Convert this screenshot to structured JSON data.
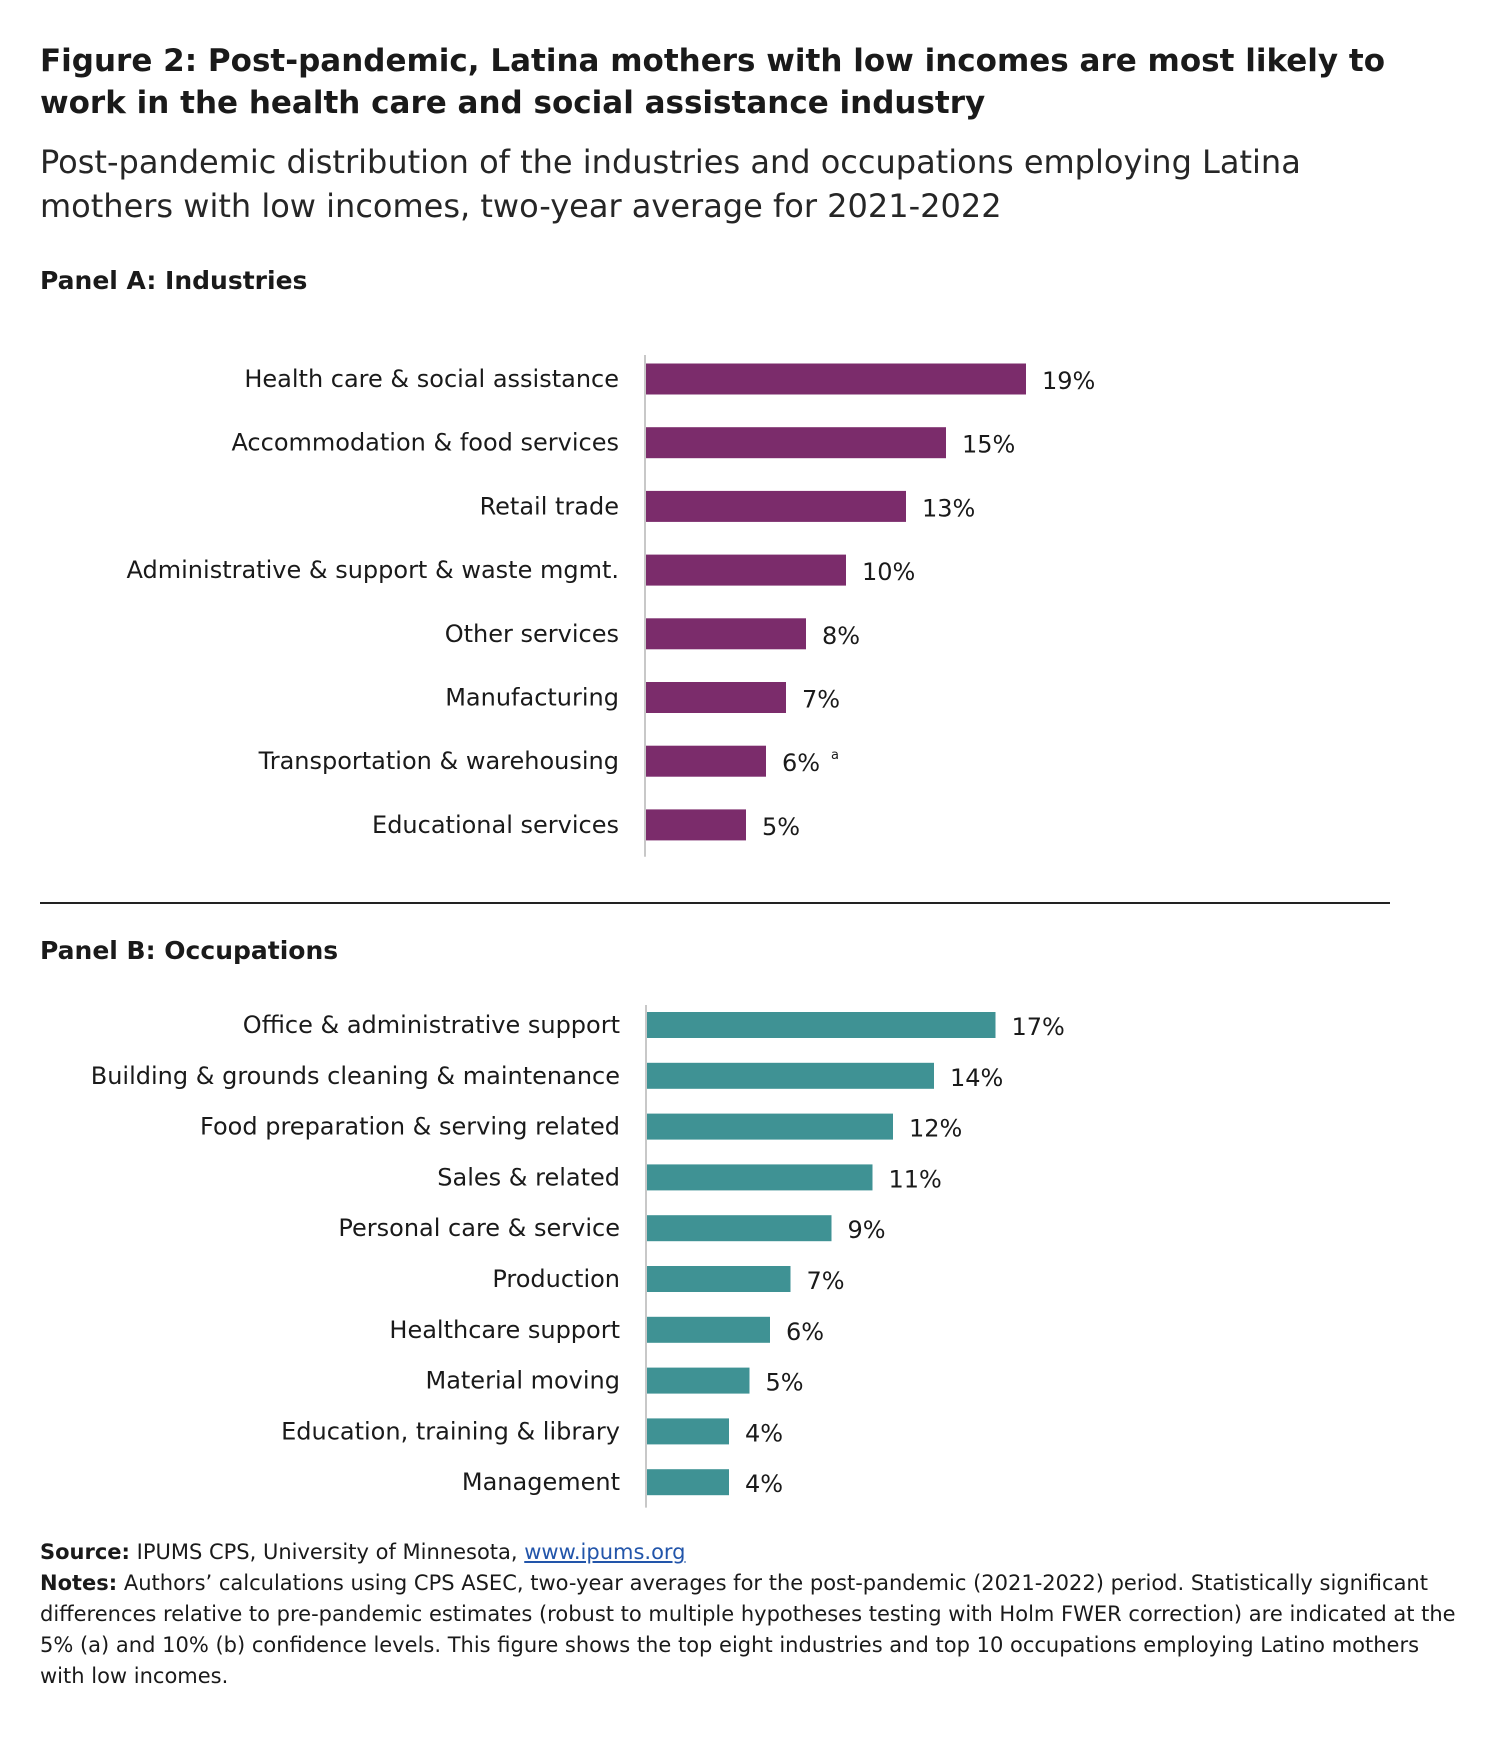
{
  "title": "Figure 2: Post-pandemic, Latina mothers with low incomes are most likely to work in the health care and social assistance industry",
  "subtitle": "Post-pandemic distribution of the industries and occupations employing Latina mothers with low incomes, two-year average for 2021-2022",
  "panel_a_title": "Panel A: Industries",
  "panel_b_title": "Panel B: Occupations",
  "colors": {
    "industries": "#7b2c6b",
    "occupations": "#3f9294",
    "axis": "#c8c8c8"
  },
  "chart_data": [
    {
      "type": "bar",
      "orientation": "horizontal",
      "title": "Panel A: Industries",
      "categories": [
        "Health care & social assistance",
        "Accommodation & food services",
        "Retail trade",
        "Administrative & support & waste mgmt.",
        "Other services",
        "Manufacturing",
        "Transportation & warehousing",
        "Educational services"
      ],
      "values": [
        19,
        15,
        13,
        10,
        8,
        7,
        6,
        5
      ],
      "labels": [
        "19%",
        "15%",
        "13%",
        "10%",
        "8%",
        "7%",
        "6%",
        "5%"
      ],
      "annotations": [
        "",
        "",
        "",
        "",
        "",
        "",
        "a",
        ""
      ],
      "xlim": [
        0,
        20
      ],
      "grid": false
    },
    {
      "type": "bar",
      "orientation": "horizontal",
      "title": "Panel B: Occupations",
      "categories": [
        "Office & administrative support",
        "Building & grounds cleaning & maintenance",
        "Food preparation & serving related",
        "Sales & related",
        "Personal care & service",
        "Production",
        "Healthcare support",
        "Material moving",
        "Education, training & library",
        "Management"
      ],
      "values": [
        17,
        14,
        12,
        11,
        9,
        7,
        6,
        5,
        4,
        4
      ],
      "labels": [
        "17%",
        "14%",
        "12%",
        "11%",
        "9%",
        "7%",
        "6%",
        "5%",
        "4%",
        "4%"
      ],
      "annotations": [
        "",
        "",
        "",
        "",
        "",
        "",
        "",
        "",
        "",
        ""
      ],
      "xlim": [
        0,
        20
      ],
      "grid": false
    }
  ],
  "footer": {
    "source_label": "Source:",
    "source_text": " IPUMS CPS, University of Minnesota, ",
    "source_link": "www.ipums.org",
    "notes_label": "Notes:",
    "notes_text": " Authors’ calculations using CPS ASEC, two-year averages for the post-pandemic (2021-2022) period. Statistically significant differences relative to pre-pandemic estimates (robust to multiple hypotheses testing with Holm FWER correction) are indicated at the 5% (a) and 10% (b) confidence levels. This figure shows the top eight industries and top 10 occupations employing Latino mothers with low incomes."
  }
}
